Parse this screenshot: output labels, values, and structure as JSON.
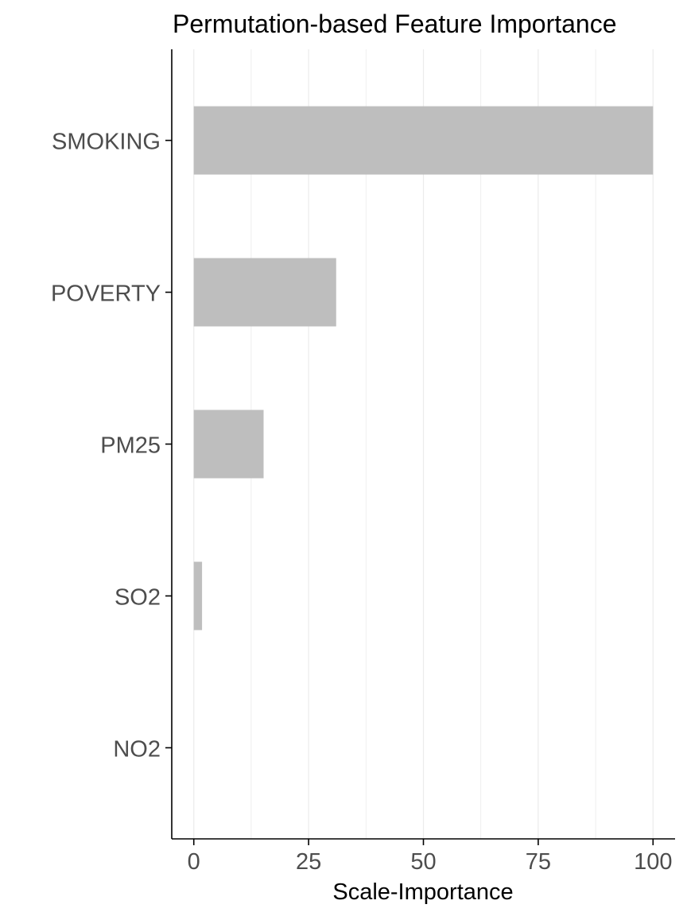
{
  "chart_data": {
    "type": "bar",
    "orientation": "horizontal",
    "title": "Permutation-based Feature Importance",
    "xlabel": "Scale-Importance",
    "ylabel": "",
    "categories": [
      "SMOKING",
      "POVERTY",
      "PM25",
      "SO2",
      "NO2"
    ],
    "values": [
      100,
      31,
      15.2,
      1.8,
      0
    ],
    "xlim": [
      -4.8,
      104.8
    ],
    "xticks": [
      0,
      25,
      50,
      75,
      100
    ],
    "grid": "vertical major and minor",
    "legend": "none",
    "colors": {
      "bar": "#bebebe",
      "grid": "#ebebeb",
      "axis": "#000000",
      "tick_label": "#4d4d4d"
    }
  }
}
